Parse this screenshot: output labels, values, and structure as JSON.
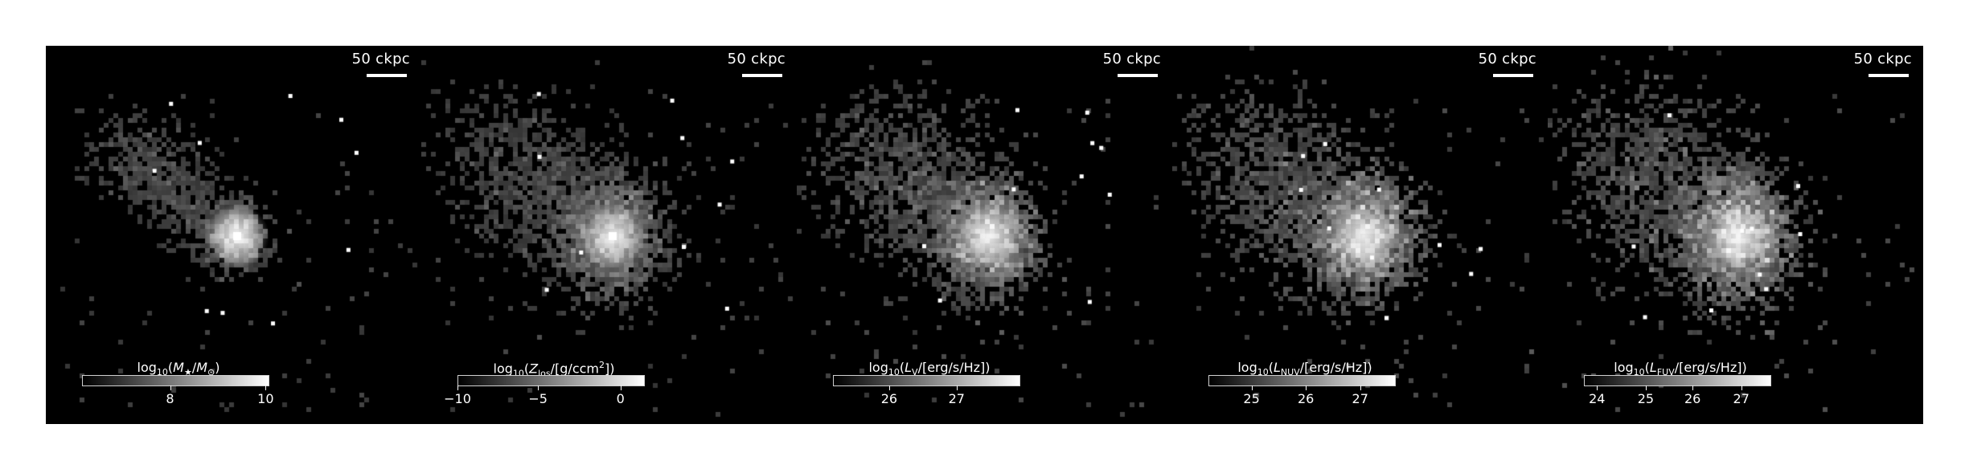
{
  "panels": [
    {
      "scalebar": "50 ckpc",
      "colorbar_label": {
        "pre": "log",
        "sub": "10",
        "mid": "(",
        "var": "M",
        "var_sub": "★",
        "rest": "/",
        "var2": "M",
        "var2_sub": "⊙",
        "post": ")"
      },
      "ticks": [
        {
          "label": "8",
          "frac": 0.47
        },
        {
          "label": "10",
          "frac": 0.98
        }
      ]
    },
    {
      "scalebar": "50 ckpc",
      "colorbar_label": {
        "pre": "log",
        "sub": "10",
        "mid": "(",
        "var": "Z",
        "var_sub": "los",
        "rest": "/[g/ccm",
        "sup": "2",
        "post": "])"
      },
      "ticks": [
        {
          "label": "−10",
          "frac": 0.0
        },
        {
          "label": "−5",
          "frac": 0.43
        },
        {
          "label": "0",
          "frac": 0.87
        }
      ]
    },
    {
      "scalebar": "50 ckpc",
      "colorbar_label": {
        "pre": "log",
        "sub": "10",
        "mid": "(",
        "var": "L",
        "var_sub": "V",
        "rest": "/[erg/s/Hz])"
      },
      "ticks": [
        {
          "label": "26",
          "frac": 0.3
        },
        {
          "label": "27",
          "frac": 0.66
        }
      ]
    },
    {
      "scalebar": "50 ckpc",
      "colorbar_label": {
        "pre": "log",
        "sub": "10",
        "mid": "(",
        "var": "L",
        "var_sub": "NUV",
        "rest": "/[erg/s/Hz])"
      },
      "ticks": [
        {
          "label": "25",
          "frac": 0.23
        },
        {
          "label": "26",
          "frac": 0.52
        },
        {
          "label": "27",
          "frac": 0.81
        }
      ]
    },
    {
      "scalebar": "50 ckpc",
      "colorbar_label": {
        "pre": "log",
        "sub": "10",
        "mid": "(",
        "var": "L",
        "var_sub": "FUV",
        "rest": "/[erg/s/Hz])"
      },
      "ticks": [
        {
          "label": "24",
          "frac": 0.07
        },
        {
          "label": "25",
          "frac": 0.33
        },
        {
          "label": "26",
          "frac": 0.58
        },
        {
          "label": "27",
          "frac": 0.84
        }
      ]
    }
  ]
}
